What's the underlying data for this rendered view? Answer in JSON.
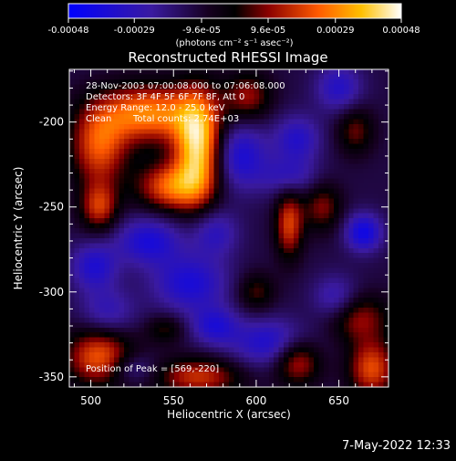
{
  "colorbar": {
    "ticks": [
      "-0.00048",
      "-0.00029",
      "-9.6e-05",
      "9.6e-05",
      "0.00029",
      "0.00048"
    ],
    "unit_label": "(photons cm⁻² s⁻¹ asec⁻²)",
    "range": [
      -0.00048,
      0.00048
    ]
  },
  "chart_data": {
    "type": "heatmap",
    "title": "Reconstructed RHESSI Image",
    "xlabel": "Heliocentric X (arcsec)",
    "ylabel": "Heliocentric Y (arcsec)",
    "xlim": [
      487,
      680
    ],
    "ylim": [
      -356,
      -169
    ],
    "xticks": [
      500,
      550,
      600,
      650
    ],
    "yticks": [
      -200,
      -250,
      -300,
      -350
    ],
    "annotations": [
      "28-Nov-2003 07:00:08.000 to 07:06:08.000",
      "Detectors: 3F 4F 5F 6F 7F 8F, Att 0",
      "Energy Range: 12.0 - 25.0 keV",
      "Clean",
      "Total counts: 2.74E+03"
    ],
    "peak_label": "Position of Peak = [569,-220]",
    "peak_position": [
      569,
      -220
    ],
    "emission_sources": [
      {
        "x": 565,
        "y": -215,
        "value": 0.00048,
        "sx": 10,
        "sy": 22
      },
      {
        "x": 535,
        "y": -195,
        "value": 0.00036,
        "sx": 22,
        "sy": 12
      },
      {
        "x": 505,
        "y": -215,
        "value": 0.00028,
        "sx": 12,
        "sy": 16
      },
      {
        "x": 548,
        "y": -238,
        "value": 0.0003,
        "sx": 14,
        "sy": 10
      },
      {
        "x": 505,
        "y": -250,
        "value": 0.00024,
        "sx": 8,
        "sy": 10
      },
      {
        "x": 595,
        "y": -185,
        "value": 0.00018,
        "sx": 10,
        "sy": 10
      },
      {
        "x": 620,
        "y": -260,
        "value": 0.00026,
        "sx": 6,
        "sy": 14
      },
      {
        "x": 640,
        "y": -250,
        "value": 0.00016,
        "sx": 8,
        "sy": 10
      },
      {
        "x": 660,
        "y": -205,
        "value": 0.00014,
        "sx": 8,
        "sy": 10
      },
      {
        "x": 660,
        "y": -315,
        "value": 0.0002,
        "sx": 14,
        "sy": 10
      },
      {
        "x": 505,
        "y": -338,
        "value": 0.0003,
        "sx": 14,
        "sy": 12
      },
      {
        "x": 565,
        "y": -350,
        "value": 0.00024,
        "sx": 18,
        "sy": 8
      },
      {
        "x": 625,
        "y": -340,
        "value": 0.00026,
        "sx": 10,
        "sy": 10
      },
      {
        "x": 670,
        "y": -345,
        "value": 0.00028,
        "sx": 10,
        "sy": 12
      },
      {
        "x": 600,
        "y": -300,
        "value": 0.00012,
        "sx": 8,
        "sy": 8
      },
      {
        "x": 545,
        "y": -322,
        "value": 0.0001,
        "sx": 8,
        "sy": 6
      },
      {
        "x": 590,
        "y": -220,
        "value": -0.0003,
        "sx": 12,
        "sy": 14
      },
      {
        "x": 625,
        "y": -210,
        "value": -0.00026,
        "sx": 10,
        "sy": 10
      },
      {
        "x": 650,
        "y": -180,
        "value": -0.00026,
        "sx": 10,
        "sy": 10
      },
      {
        "x": 620,
        "y": -232,
        "value": -0.00022,
        "sx": 12,
        "sy": 8
      },
      {
        "x": 665,
        "y": -265,
        "value": -0.00034,
        "sx": 8,
        "sy": 8
      },
      {
        "x": 535,
        "y": -270,
        "value": -0.0003,
        "sx": 14,
        "sy": 10
      },
      {
        "x": 575,
        "y": -265,
        "value": -0.00024,
        "sx": 10,
        "sy": 10
      },
      {
        "x": 502,
        "y": -285,
        "value": -0.00028,
        "sx": 10,
        "sy": 10
      },
      {
        "x": 510,
        "y": -312,
        "value": -0.00022,
        "sx": 12,
        "sy": 10
      },
      {
        "x": 560,
        "y": -295,
        "value": -0.0003,
        "sx": 16,
        "sy": 12
      },
      {
        "x": 610,
        "y": -330,
        "value": -0.0003,
        "sx": 18,
        "sy": 10
      },
      {
        "x": 648,
        "y": -305,
        "value": -0.00026,
        "sx": 10,
        "sy": 10
      },
      {
        "x": 575,
        "y": -320,
        "value": -0.00026,
        "sx": 10,
        "sy": 8
      },
      {
        "x": 525,
        "y": -345,
        "value": -0.0002,
        "sx": 10,
        "sy": 6
      }
    ]
  },
  "timestamp": "7-May-2022 12:33"
}
